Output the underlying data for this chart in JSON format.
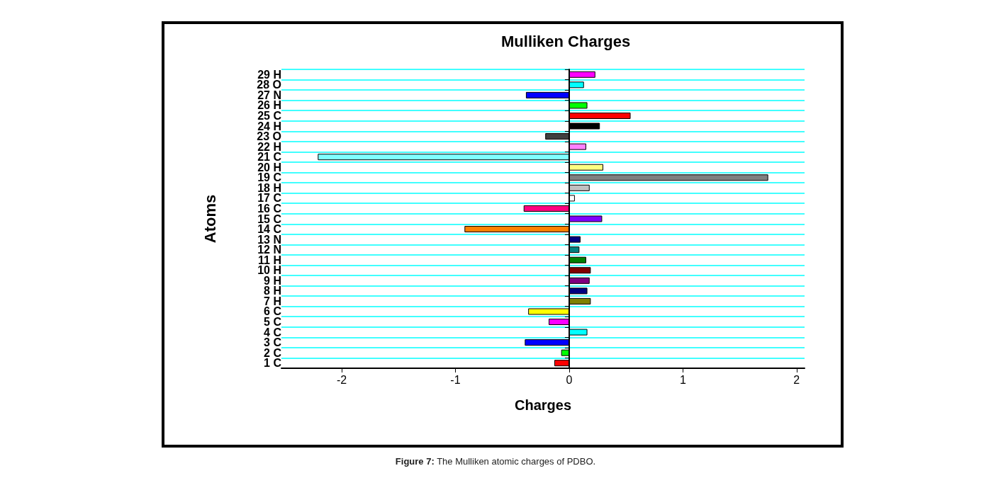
{
  "chart_data": {
    "type": "bar",
    "orientation": "horizontal",
    "title": "Mulliken Charges",
    "xlabel": "Charges",
    "ylabel": "Atoms",
    "categories": [
      "29 H",
      "28 O",
      "27 N",
      "26 H",
      "25 C",
      "24 H",
      "23 O",
      "22 H",
      "21 C",
      "20 H",
      "19 C",
      "18 H",
      "17 C",
      "16 C",
      "15 C",
      "14 C",
      "13 N",
      "12 N",
      "11 H",
      "10 H",
      "9 H",
      "8 H",
      "7 H",
      "6 C",
      "5 C",
      "4 C",
      "3 C",
      "2 C",
      "1 C"
    ],
    "values": [
      0.23,
      0.13,
      -0.38,
      0.16,
      0.54,
      0.27,
      -0.21,
      0.15,
      -2.21,
      0.3,
      1.75,
      0.18,
      0.05,
      -0.4,
      0.29,
      -0.92,
      0.1,
      0.09,
      0.15,
      0.19,
      0.18,
      0.16,
      0.19,
      -0.36,
      -0.18,
      0.16,
      -0.39,
      -0.07,
      -0.13
    ],
    "colors": [
      "#ff00ff",
      "#00ffff",
      "#0000ff",
      "#00ff00",
      "#ff0000",
      "#000000",
      "#404040",
      "#ff80ff",
      "#80ffff",
      "#ffff80",
      "#808080",
      "#c0c0c0",
      "#ffffff",
      "#ff0080",
      "#8000ff",
      "#ff8000",
      "#000080",
      "#008080",
      "#008000",
      "#800000",
      "#800080",
      "#000080",
      "#808000",
      "#ffff00",
      "#ff00ff",
      "#00ffff",
      "#0000ff",
      "#00ff00",
      "#ff0000"
    ],
    "xlim": [
      -2.53,
      2.07
    ],
    "xticks": [
      -2,
      -1,
      0,
      1,
      2
    ],
    "grid": "y",
    "annotations": [
      "Figure 7: The Mulliken atomic charges of PDBO."
    ]
  }
}
